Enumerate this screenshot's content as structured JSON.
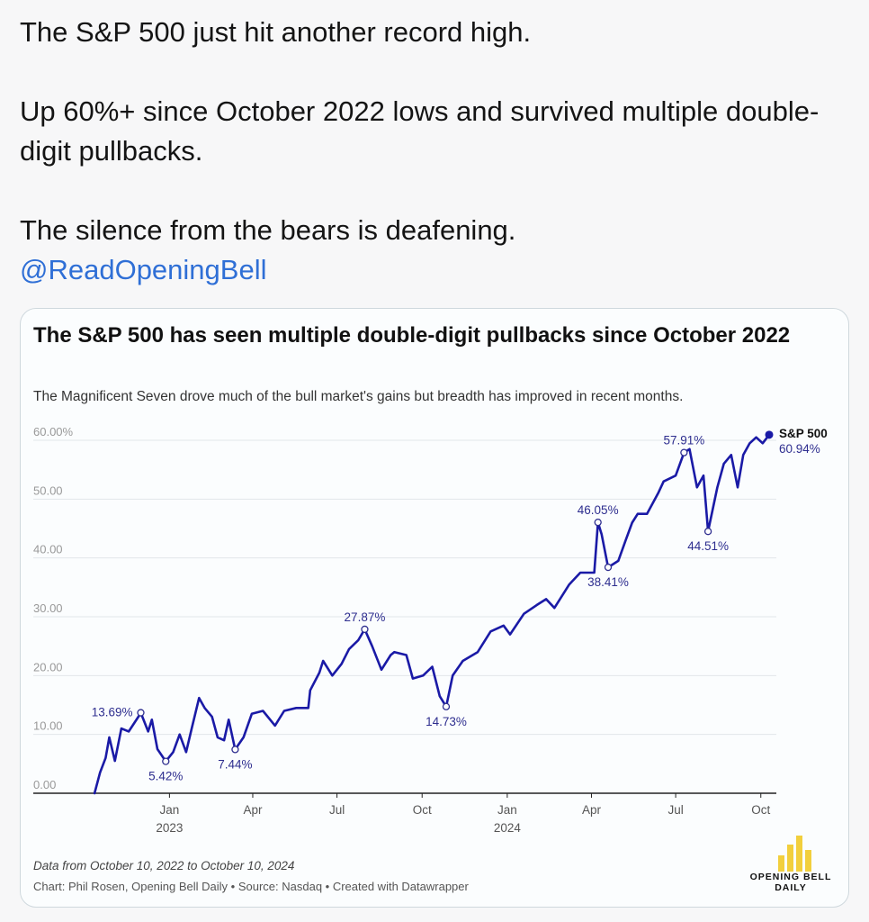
{
  "tweet": {
    "line1": "The S&P 500 just hit another record high.",
    "line2": "Up 60%+ since October 2022 lows and survived multiple double-digit pullbacks.",
    "line3": "The silence from the bears is deafening.",
    "mention": "@ReadOpeningBell"
  },
  "colors": {
    "line": "#1a1aa6",
    "annotation": "#2e2e8f",
    "grid": "#e2e6ea",
    "axis": "#222222",
    "logo": "#f2cf3d"
  },
  "chart_data": {
    "type": "line",
    "title": "The S&P 500 has seen multiple double-digit pullbacks since October 2022",
    "subtitle": "The Magnificent Seven drove much of the bull market's gains but breadth has improved in recent months.",
    "x_range": [
      "2022-10-10",
      "2024-10-10"
    ],
    "ylim": [
      0,
      60
    ],
    "y_ticks": [
      {
        "value": 0,
        "label": "0.00"
      },
      {
        "value": 10,
        "label": "10.00"
      },
      {
        "value": 20,
        "label": "20.00"
      },
      {
        "value": 30,
        "label": "30.00"
      },
      {
        "value": 40,
        "label": "40.00"
      },
      {
        "value": 50,
        "label": "50.00"
      },
      {
        "value": 60,
        "label": "60.00%"
      }
    ],
    "x_ticks": [
      {
        "date": "2023-01-01",
        "label": "Jan",
        "sublabel": "2023"
      },
      {
        "date": "2023-04-01",
        "label": "Apr",
        "sublabel": ""
      },
      {
        "date": "2023-07-01",
        "label": "Jul",
        "sublabel": ""
      },
      {
        "date": "2023-10-01",
        "label": "Oct",
        "sublabel": ""
      },
      {
        "date": "2024-01-01",
        "label": "Jan",
        "sublabel": "2024"
      },
      {
        "date": "2024-04-01",
        "label": "Apr",
        "sublabel": ""
      },
      {
        "date": "2024-07-01",
        "label": "Jul",
        "sublabel": ""
      },
      {
        "date": "2024-10-01",
        "label": "Oct",
        "sublabel": ""
      }
    ],
    "grid": true,
    "series": [
      {
        "name": "S&P 500",
        "end_label": "60.94%",
        "points": [
          [
            "2022-10-12",
            0.0
          ],
          [
            "2022-10-18",
            3.5
          ],
          [
            "2022-10-24",
            6.0
          ],
          [
            "2022-10-28",
            9.5
          ],
          [
            "2022-11-03",
            5.5
          ],
          [
            "2022-11-10",
            11.0
          ],
          [
            "2022-11-18",
            10.5
          ],
          [
            "2022-11-30",
            13.4
          ],
          [
            "2022-12-01",
            13.69
          ],
          [
            "2022-12-09",
            10.5
          ],
          [
            "2022-12-13",
            12.5
          ],
          [
            "2022-12-19",
            7.5
          ],
          [
            "2022-12-28",
            5.42
          ],
          [
            "2023-01-05",
            7.0
          ],
          [
            "2023-01-12",
            10.0
          ],
          [
            "2023-01-19",
            7.0
          ],
          [
            "2023-01-25",
            11.0
          ],
          [
            "2023-02-02",
            16.2
          ],
          [
            "2023-02-08",
            14.5
          ],
          [
            "2023-02-16",
            13.0
          ],
          [
            "2023-02-22",
            9.5
          ],
          [
            "2023-03-01",
            9.0
          ],
          [
            "2023-03-06",
            12.5
          ],
          [
            "2023-03-13",
            7.44
          ],
          [
            "2023-03-22",
            9.5
          ],
          [
            "2023-03-31",
            13.5
          ],
          [
            "2023-04-12",
            14.0
          ],
          [
            "2023-04-25",
            11.5
          ],
          [
            "2023-05-05",
            14.0
          ],
          [
            "2023-05-18",
            14.5
          ],
          [
            "2023-05-31",
            14.5
          ],
          [
            "2023-06-02",
            17.5
          ],
          [
            "2023-06-12",
            20.5
          ],
          [
            "2023-06-16",
            22.5
          ],
          [
            "2023-06-26",
            20.0
          ],
          [
            "2023-07-06",
            22.0
          ],
          [
            "2023-07-14",
            24.5
          ],
          [
            "2023-07-24",
            26.0
          ],
          [
            "2023-07-31",
            27.87
          ],
          [
            "2023-08-08",
            25.0
          ],
          [
            "2023-08-18",
            21.0
          ],
          [
            "2023-08-28",
            23.5
          ],
          [
            "2023-09-01",
            24.0
          ],
          [
            "2023-09-14",
            23.5
          ],
          [
            "2023-09-21",
            19.5
          ],
          [
            "2023-10-02",
            20.0
          ],
          [
            "2023-10-12",
            21.5
          ],
          [
            "2023-10-20",
            16.5
          ],
          [
            "2023-10-27",
            14.73
          ],
          [
            "2023-11-03",
            20.0
          ],
          [
            "2023-11-14",
            22.5
          ],
          [
            "2023-11-30",
            24.0
          ],
          [
            "2023-12-14",
            27.5
          ],
          [
            "2023-12-28",
            28.5
          ],
          [
            "2024-01-04",
            27.0
          ],
          [
            "2024-01-19",
            30.5
          ],
          [
            "2024-02-02",
            32.0
          ],
          [
            "2024-02-12",
            33.0
          ],
          [
            "2024-02-21",
            31.5
          ],
          [
            "2024-03-08",
            35.5
          ],
          [
            "2024-03-20",
            37.5
          ],
          [
            "2024-03-28",
            37.5
          ],
          [
            "2024-04-04",
            37.5
          ],
          [
            "2024-04-08",
            46.05
          ],
          [
            "2024-04-12",
            44.0
          ],
          [
            "2024-04-19",
            38.41
          ],
          [
            "2024-04-30",
            39.5
          ],
          [
            "2024-05-08",
            43.0
          ],
          [
            "2024-05-15",
            46.0
          ],
          [
            "2024-05-21",
            47.5
          ],
          [
            "2024-05-31",
            47.5
          ],
          [
            "2024-06-12",
            51.0
          ],
          [
            "2024-06-18",
            53.0
          ],
          [
            "2024-07-01",
            54.0
          ],
          [
            "2024-07-10",
            57.91
          ],
          [
            "2024-07-16",
            58.5
          ],
          [
            "2024-07-24",
            52.0
          ],
          [
            "2024-07-31",
            54.0
          ],
          [
            "2024-08-05",
            44.51
          ],
          [
            "2024-08-15",
            52.0
          ],
          [
            "2024-08-22",
            56.0
          ],
          [
            "2024-08-30",
            57.5
          ],
          [
            "2024-09-06",
            52.0
          ],
          [
            "2024-09-12",
            57.5
          ],
          [
            "2024-09-19",
            59.5
          ],
          [
            "2024-09-26",
            60.5
          ],
          [
            "2024-10-03",
            59.5
          ],
          [
            "2024-10-10",
            60.94
          ]
        ]
      }
    ],
    "annotations": [
      {
        "date": "2022-12-01",
        "value": 13.69,
        "label": "13.69%",
        "position": "left"
      },
      {
        "date": "2022-12-28",
        "value": 5.42,
        "label": "5.42%",
        "position": "below"
      },
      {
        "date": "2023-03-13",
        "value": 7.44,
        "label": "7.44%",
        "position": "below"
      },
      {
        "date": "2023-07-31",
        "value": 27.87,
        "label": "27.87%",
        "position": "above"
      },
      {
        "date": "2023-10-27",
        "value": 14.73,
        "label": "14.73%",
        "position": "below"
      },
      {
        "date": "2024-04-08",
        "value": 46.05,
        "label": "46.05%",
        "position": "above"
      },
      {
        "date": "2024-04-19",
        "value": 38.41,
        "label": "38.41%",
        "position": "below"
      },
      {
        "date": "2024-07-10",
        "value": 57.91,
        "label": "57.91%",
        "position": "above"
      },
      {
        "date": "2024-08-05",
        "value": 44.51,
        "label": "44.51%",
        "position": "below"
      }
    ]
  },
  "footer": {
    "note": "Data from October 10, 2022 to October 10, 2024",
    "source": "Chart: Phil Rosen, Opening Bell Daily • Source: Nasdaq • Created with Datawrapper",
    "logo_line1": "OPENING BELL",
    "logo_line2": "DAILY"
  }
}
